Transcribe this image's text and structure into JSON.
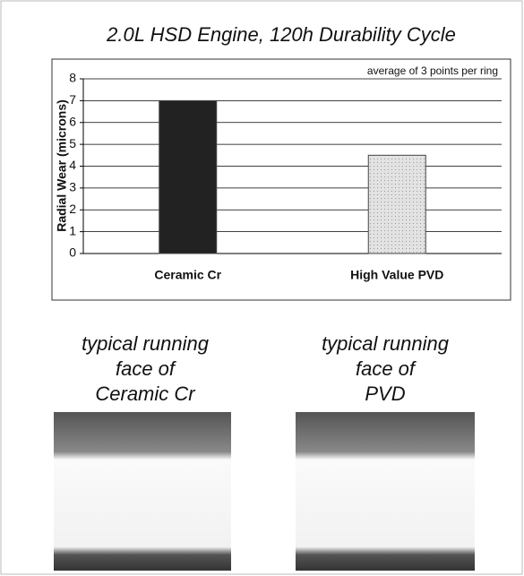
{
  "chart_data": {
    "type": "bar",
    "title": "2.0L HSD Engine, 120h Durability Cycle",
    "annotation": "average of 3 points per ring",
    "y_label": "Radial Wear (microns)",
    "categories": [
      "Ceramic Cr",
      "High Value PVD"
    ],
    "values": [
      7,
      4.5
    ],
    "colors": [
      "#222222",
      "#dcdcdc"
    ],
    "ylim": [
      0,
      8
    ],
    "yticks": [
      0,
      1,
      2,
      3,
      4,
      5,
      6,
      7,
      8
    ],
    "grid": true
  },
  "captions": [
    [
      "typical running",
      "face of",
      "Ceramic Cr"
    ],
    [
      "typical running",
      "face of",
      "PVD"
    ]
  ]
}
